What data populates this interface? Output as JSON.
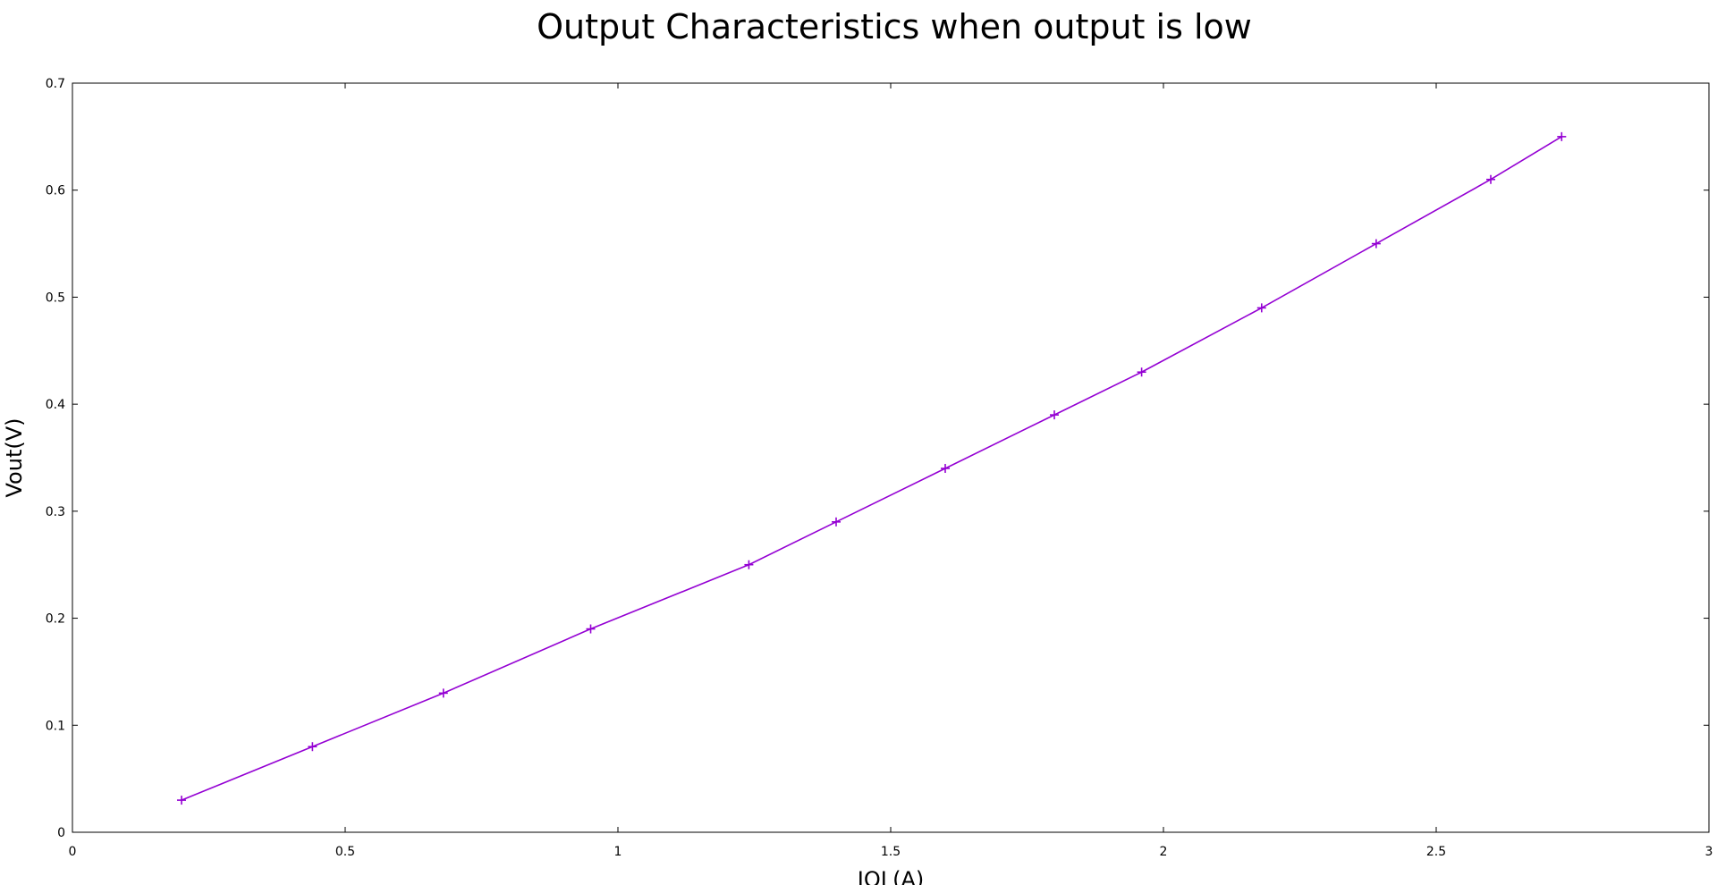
{
  "chart_data": {
    "type": "line",
    "title": "Output Characteristics when output is low",
    "xlabel": "IOL(A)",
    "ylabel": "Vout(V)",
    "xlim": [
      0,
      3
    ],
    "ylim": [
      0,
      0.7
    ],
    "xticks": [
      0,
      0.5,
      1,
      1.5,
      2,
      2.5,
      3
    ],
    "yticks": [
      0,
      0.1,
      0.2,
      0.3,
      0.4,
      0.5,
      0.6,
      0.7
    ],
    "xtick_labels": [
      "0",
      "0.5",
      "1",
      "1.5",
      "2",
      "2.5",
      "3"
    ],
    "ytick_labels": [
      "0",
      "0.1",
      "0.2",
      "0.3",
      "0.4",
      "0.5",
      "0.6",
      "0.7"
    ],
    "grid": false,
    "series": [
      {
        "color": "#9400d3",
        "marker": "plus",
        "x": [
          0.2,
          0.44,
          0.68,
          0.95,
          1.24,
          1.4,
          1.6,
          1.8,
          1.96,
          2.18,
          2.39,
          2.6,
          2.73
        ],
        "y": [
          0.03,
          0.08,
          0.13,
          0.19,
          0.25,
          0.29,
          0.34,
          0.39,
          0.43,
          0.49,
          0.55,
          0.61,
          0.65
        ]
      }
    ]
  }
}
